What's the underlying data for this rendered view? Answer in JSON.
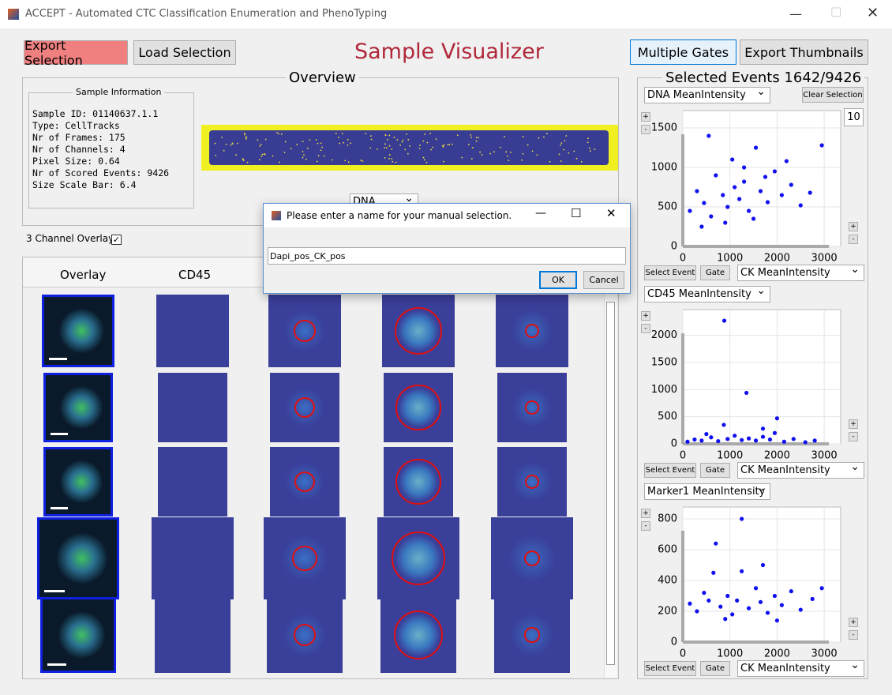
{
  "window": {
    "title": "ACCEPT - Automated CTC Classification Enumeration and PhenoTyping"
  },
  "toolbar": {
    "left_buttons": [
      "Export Selection",
      "Load Selection"
    ],
    "title": "Sample Visualizer",
    "right_buttons": [
      "Multiple Gates",
      "Export Thumbnails"
    ]
  },
  "overview": {
    "title": "Overview",
    "info_title": "Sample Information",
    "info_lines": [
      "Sample ID: 01140637.1.1",
      "Type: CellTracks",
      "Nr of Frames: 175",
      "Nr of Channels: 4",
      "Pixel Size: 0.64",
      "Nr of Scored Events: 9426",
      "Size Scale Bar: 6.4"
    ],
    "channel_select": "DNA"
  },
  "overlay_option": "3 Channel Overlay",
  "gallery": {
    "headers": [
      "Overlay",
      "CD45"
    ]
  },
  "dialog": {
    "title": "Please enter a name for your manual selection.",
    "input": "Dapi_pos_CK_pos",
    "buttons": [
      "OK",
      "Cancel"
    ]
  },
  "selected": {
    "title": "Selected Events 1642/9426",
    "clear_button": "Clear Selection",
    "count": "10",
    "zoom": [
      "+",
      "-"
    ],
    "plots": [
      {
        "y_select": "DNA MeanIntensity",
        "x_select": "CK MeanIntensity",
        "buttons": [
          "Select Event",
          "Gate"
        ],
        "xlim": [
          0,
          3350
        ],
        "ylim": [
          0,
          1720
        ],
        "xticks": [
          0,
          1000,
          2000,
          3000
        ],
        "yticks": [
          0,
          500,
          1000,
          1500
        ],
        "x": [
          150,
          300,
          450,
          600,
          700,
          850,
          950,
          1050,
          1200,
          1300,
          1400,
          1550,
          1650,
          1800,
          1950,
          2100,
          2300,
          2500,
          2700,
          2950,
          550,
          1300,
          1500,
          900,
          1750,
          400,
          2200,
          1100
        ],
        "y": [
          450,
          700,
          550,
          380,
          900,
          650,
          500,
          1100,
          600,
          820,
          450,
          1250,
          700,
          560,
          950,
          650,
          780,
          520,
          680,
          1280,
          1400,
          1000,
          350,
          300,
          880,
          250,
          1080,
          750
        ]
      },
      {
        "y_select": "CD45 MeanIntensity",
        "x_select": "CK MeanIntensity",
        "buttons": [
          "Select Event",
          "Gate"
        ],
        "xlim": [
          0,
          3350
        ],
        "ylim": [
          0,
          2475
        ],
        "xticks": [
          0,
          1000,
          2000,
          3000
        ],
        "yticks": [
          0,
          500,
          1000,
          1500,
          2000
        ],
        "x": [
          100,
          250,
          400,
          600,
          750,
          880,
          950,
          1100,
          1250,
          1400,
          1550,
          1700,
          1850,
          2000,
          2150,
          2350,
          2600,
          2800,
          870,
          1350,
          1950,
          1700,
          500
        ],
        "y": [
          40,
          80,
          60,
          120,
          50,
          2270,
          90,
          150,
          70,
          100,
          60,
          130,
          80,
          470,
          40,
          90,
          30,
          60,
          350,
          940,
          200,
          280,
          180
        ]
      },
      {
        "y_select": "Marker1 MeanIntensity",
        "x_select": "CK MeanIntensity",
        "buttons": [
          "Select Event",
          "Gate"
        ],
        "xlim": [
          0,
          3350
        ],
        "ylim": [
          0,
          877
        ],
        "xticks": [
          0,
          1000,
          2000,
          3000
        ],
        "yticks": [
          0,
          200,
          400,
          600,
          800
        ],
        "x": [
          150,
          300,
          450,
          550,
          700,
          800,
          950,
          1050,
          1150,
          1250,
          1400,
          1550,
          1650,
          1800,
          1950,
          2100,
          2300,
          2500,
          2750,
          2950,
          1250,
          650,
          1700,
          900,
          2000
        ],
        "y": [
          250,
          200,
          320,
          270,
          640,
          230,
          300,
          180,
          270,
          800,
          220,
          350,
          260,
          190,
          300,
          240,
          330,
          210,
          280,
          350,
          460,
          450,
          500,
          150,
          140
        ]
      }
    ]
  }
}
